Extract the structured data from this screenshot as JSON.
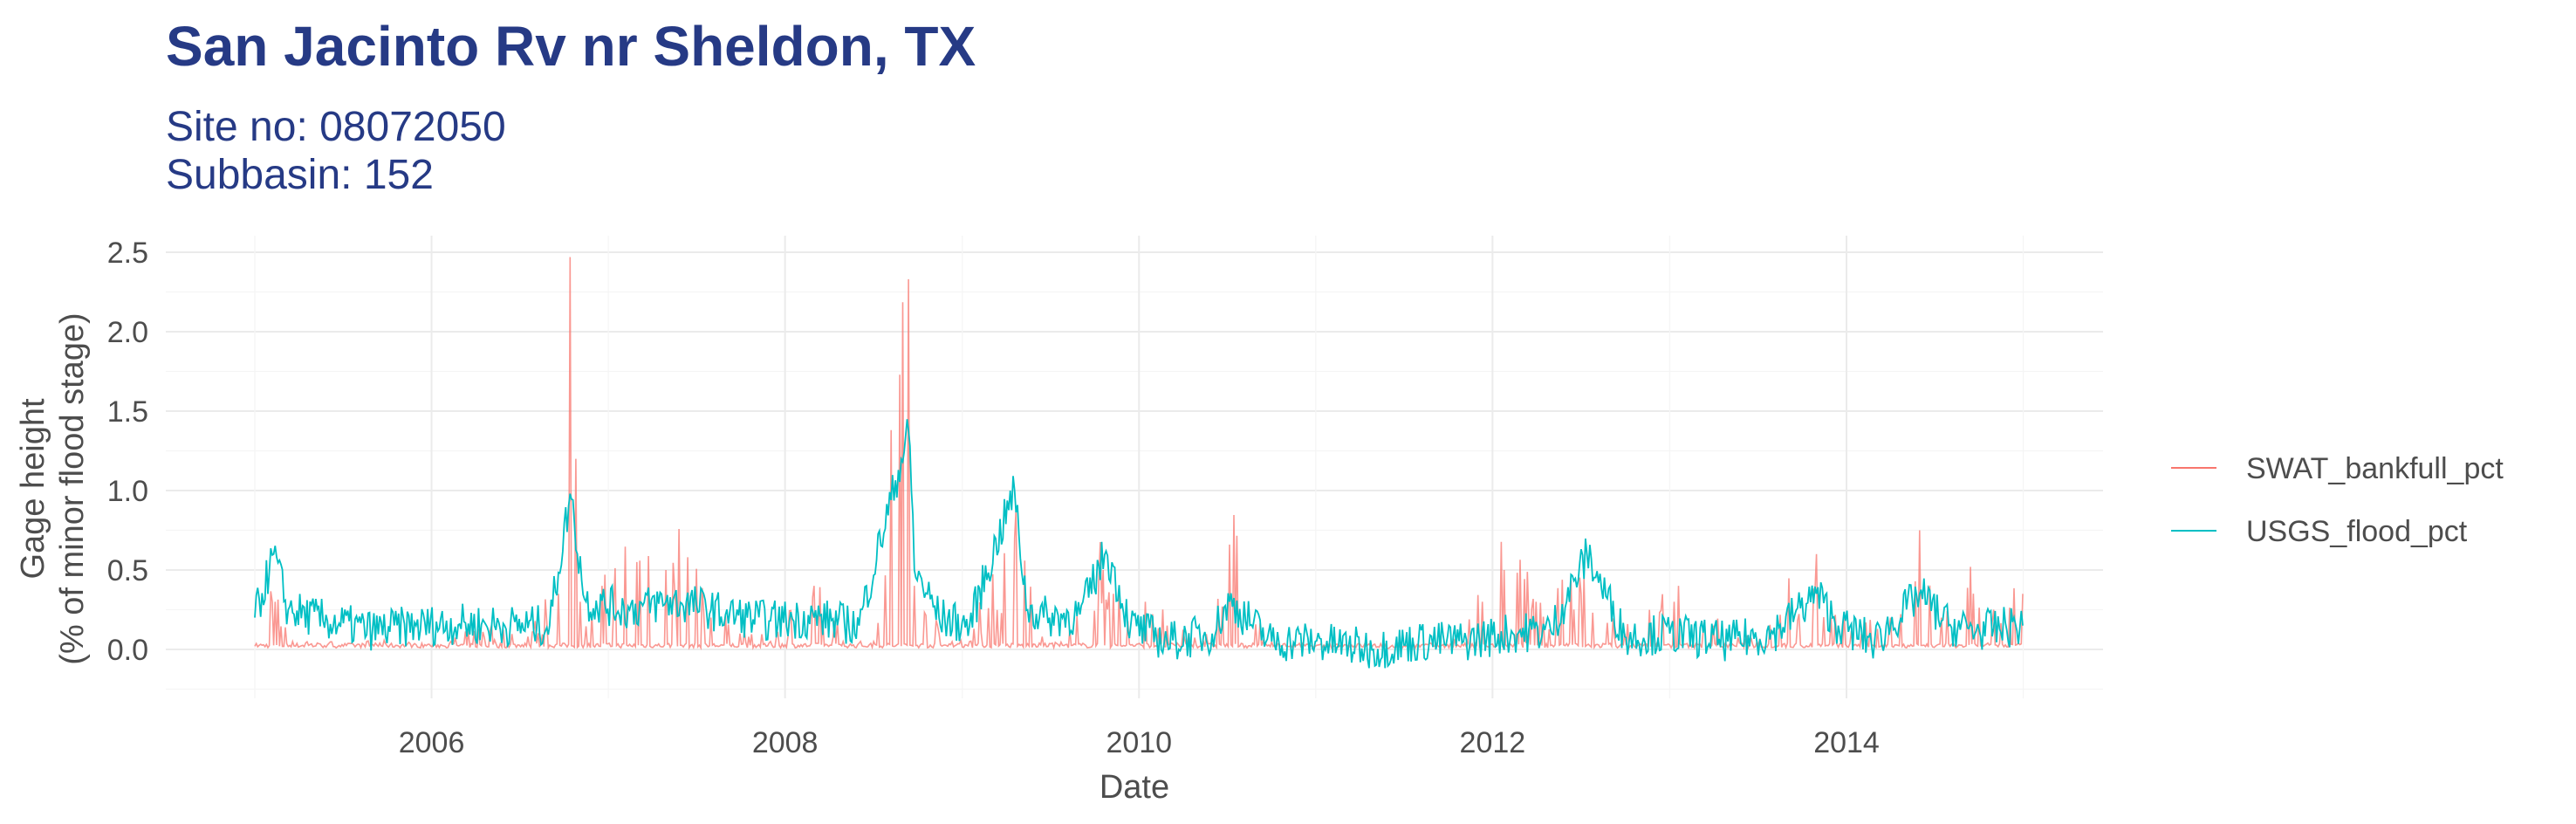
{
  "chart_data": {
    "type": "line",
    "title": "San Jacinto Rv nr Sheldon, TX",
    "subtitle_lines": [
      "Site no: 08072050",
      "Subbasin: 152"
    ],
    "xlabel": "Date",
    "ylabel_lines": [
      "Gage height",
      "(% of minor flood stage)"
    ],
    "xlim": [
      "2005-01-01",
      "2014-12-31"
    ],
    "ylim": [
      -0.25,
      2.55
    ],
    "x_ticks": [
      "2006",
      "2008",
      "2010",
      "2012",
      "2014"
    ],
    "y_ticks": [
      "0.0",
      "0.5",
      "1.0",
      "1.5",
      "2.0",
      "2.5"
    ],
    "grid": true,
    "legend_position": "right",
    "series": [
      {
        "name": "SWAT_bankfull_pct",
        "color": "#f8766d",
        "points": [
          [
            "2005-01-01",
            0.02
          ],
          [
            "2005-02-05",
            0.3
          ],
          [
            "2005-03-20",
            0.05
          ],
          [
            "2005-05-10",
            0.04
          ],
          [
            "2005-07-01",
            0.03
          ],
          [
            "2005-09-15",
            0.04
          ],
          [
            "2005-12-01",
            0.03
          ],
          [
            "2006-02-10",
            0.05
          ],
          [
            "2006-05-01",
            0.12
          ],
          [
            "2006-07-20",
            0.08
          ],
          [
            "2006-09-20",
            0.35
          ],
          [
            "2006-10-15",
            2.47
          ],
          [
            "2006-10-25",
            1.2
          ],
          [
            "2006-11-05",
            0.3
          ],
          [
            "2006-12-20",
            0.4
          ],
          [
            "2007-03-01",
            0.55
          ],
          [
            "2007-05-01",
            0.5
          ],
          [
            "2007-06-15",
            0.58
          ],
          [
            "2007-08-01",
            0.2
          ],
          [
            "2007-10-01",
            0.1
          ],
          [
            "2007-12-01",
            0.05
          ],
          [
            "2008-03-01",
            0.4
          ],
          [
            "2008-05-01",
            0.05
          ],
          [
            "2008-07-01",
            0.05
          ],
          [
            "2008-09-13",
            2.33
          ],
          [
            "2008-09-25",
            0.4
          ],
          [
            "2008-11-15",
            0.1
          ],
          [
            "2009-01-15",
            0.05
          ],
          [
            "2009-04-18",
            0.7
          ],
          [
            "2009-06-15",
            0.08
          ],
          [
            "2009-08-01",
            0.03
          ],
          [
            "2009-10-20",
            0.5
          ],
          [
            "2009-11-10",
            0.35
          ],
          [
            "2010-01-15",
            0.3
          ],
          [
            "2010-03-01",
            0.15
          ],
          [
            "2010-05-15",
            0.05
          ],
          [
            "2010-07-07",
            0.66
          ],
          [
            "2010-09-15",
            0.05
          ],
          [
            "2011-01-01",
            0.02
          ],
          [
            "2011-06-01",
            0.01
          ],
          [
            "2011-10-01",
            0.03
          ],
          [
            "2011-12-10",
            0.3
          ],
          [
            "2012-01-25",
            0.5
          ],
          [
            "2012-04-01",
            0.3
          ],
          [
            "2012-07-01",
            0.35
          ],
          [
            "2012-10-01",
            0.1
          ],
          [
            "2013-01-10",
            0.3
          ],
          [
            "2013-04-01",
            0.15
          ],
          [
            "2013-07-01",
            0.05
          ],
          [
            "2013-10-31",
            0.6
          ],
          [
            "2013-12-01",
            0.2
          ],
          [
            "2014-02-01",
            0.1
          ],
          [
            "2014-04-01",
            0.2
          ],
          [
            "2014-06-01",
            0.75
          ],
          [
            "2014-07-15",
            0.2
          ],
          [
            "2014-09-15",
            0.52
          ],
          [
            "2014-11-01",
            0.25
          ],
          [
            "2014-12-31",
            0.35
          ]
        ]
      },
      {
        "name": "USGS_flood_pct",
        "color": "#00bfc4",
        "points": [
          [
            "2005-01-01",
            0.2
          ],
          [
            "2005-02-10",
            0.6
          ],
          [
            "2005-03-10",
            0.25
          ],
          [
            "2005-06-01",
            0.18
          ],
          [
            "2005-09-01",
            0.12
          ],
          [
            "2005-12-01",
            0.15
          ],
          [
            "2006-03-01",
            0.16
          ],
          [
            "2006-06-01",
            0.15
          ],
          [
            "2006-09-01",
            0.15
          ],
          [
            "2006-10-15",
            0.98
          ],
          [
            "2006-10-22",
            0.8
          ],
          [
            "2006-11-15",
            0.3
          ],
          [
            "2007-02-15",
            0.25
          ],
          [
            "2007-05-01",
            0.3
          ],
          [
            "2007-07-01",
            0.28
          ],
          [
            "2007-09-01",
            0.22
          ],
          [
            "2007-12-01",
            0.18
          ],
          [
            "2008-03-01",
            0.2
          ],
          [
            "2008-06-01",
            0.15
          ],
          [
            "2008-09-13",
            1.38
          ],
          [
            "2008-09-25",
            0.5
          ],
          [
            "2008-11-15",
            0.2
          ],
          [
            "2009-01-15",
            0.15
          ],
          [
            "2009-04-18",
            1.0
          ],
          [
            "2009-05-15",
            0.25
          ],
          [
            "2009-07-01",
            0.2
          ],
          [
            "2009-09-01",
            0.22
          ],
          [
            "2009-10-25",
            0.62
          ],
          [
            "2009-12-15",
            0.15
          ],
          [
            "2010-03-01",
            0.05
          ],
          [
            "2010-06-01",
            0.1
          ],
          [
            "2010-07-07",
            0.3
          ],
          [
            "2010-10-01",
            0.05
          ],
          [
            "2011-01-01",
            0.05
          ],
          [
            "2011-05-01",
            0.0
          ],
          [
            "2011-08-01",
            0.05
          ],
          [
            "2011-11-01",
            0.05
          ],
          [
            "2012-02-01",
            0.1
          ],
          [
            "2012-05-01",
            0.12
          ],
          [
            "2012-07-15",
            0.6
          ],
          [
            "2012-10-01",
            0.08
          ],
          [
            "2013-01-01",
            0.1
          ],
          [
            "2013-05-01",
            0.05
          ],
          [
            "2013-08-01",
            0.1
          ],
          [
            "2013-10-31",
            0.35
          ],
          [
            "2013-12-15",
            0.15
          ],
          [
            "2014-03-01",
            0.05
          ],
          [
            "2014-06-01",
            0.35
          ],
          [
            "2014-08-01",
            0.15
          ],
          [
            "2014-10-01",
            0.12
          ],
          [
            "2014-12-31",
            0.15
          ]
        ]
      }
    ]
  }
}
